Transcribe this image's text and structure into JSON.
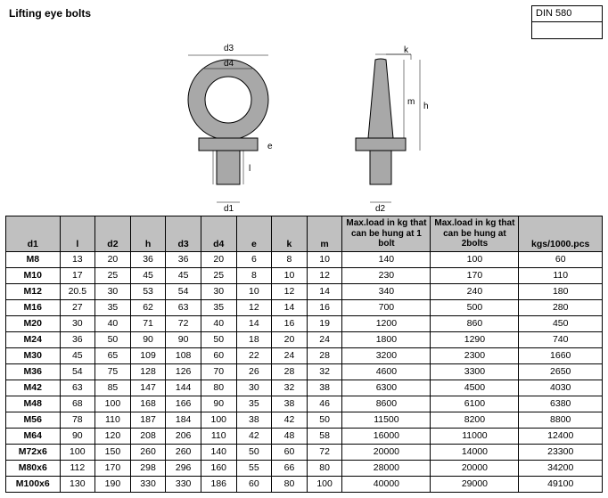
{
  "title": "Lifting eye bolts",
  "standard": "DIN 580",
  "diagram": {
    "labels": {
      "d1": "d1",
      "d2": "d2",
      "d3": "d3",
      "d4": "d4",
      "e": "e",
      "h": "h",
      "k": "k",
      "l": "l",
      "m": "m"
    },
    "part_fill": "#a8a8a8",
    "hole_fill": "#ffffff",
    "stroke": "#000000"
  },
  "columns": [
    "d1",
    "l",
    "d2",
    "h",
    "d3",
    "d4",
    "e",
    "k",
    "m",
    "Max.load in kg that can be hung at 1 bolt",
    "Max.load in kg that can be hung at 2bolts",
    "kgs/1000.pcs"
  ],
  "rows": [
    {
      "d1": "M8",
      "l": "13",
      "d2": "20",
      "h": "36",
      "d3": "36",
      "d4": "20",
      "e": "6",
      "k": "8",
      "m": "10",
      "b1": "140",
      "b2": "100",
      "kgs": "60"
    },
    {
      "d1": "M10",
      "l": "17",
      "d2": "25",
      "h": "45",
      "d3": "45",
      "d4": "25",
      "e": "8",
      "k": "10",
      "m": "12",
      "b1": "230",
      "b2": "170",
      "kgs": "110"
    },
    {
      "d1": "M12",
      "l": "20.5",
      "d2": "30",
      "h": "53",
      "d3": "54",
      "d4": "30",
      "e": "10",
      "k": "12",
      "m": "14",
      "b1": "340",
      "b2": "240",
      "kgs": "180"
    },
    {
      "d1": "M16",
      "l": "27",
      "d2": "35",
      "h": "62",
      "d3": "63",
      "d4": "35",
      "e": "12",
      "k": "14",
      "m": "16",
      "b1": "700",
      "b2": "500",
      "kgs": "280"
    },
    {
      "d1": "M20",
      "l": "30",
      "d2": "40",
      "h": "71",
      "d3": "72",
      "d4": "40",
      "e": "14",
      "k": "16",
      "m": "19",
      "b1": "1200",
      "b2": "860",
      "kgs": "450"
    },
    {
      "d1": "M24",
      "l": "36",
      "d2": "50",
      "h": "90",
      "d3": "90",
      "d4": "50",
      "e": "18",
      "k": "20",
      "m": "24",
      "b1": "1800",
      "b2": "1290",
      "kgs": "740"
    },
    {
      "d1": "M30",
      "l": "45",
      "d2": "65",
      "h": "109",
      "d3": "108",
      "d4": "60",
      "e": "22",
      "k": "24",
      "m": "28",
      "b1": "3200",
      "b2": "2300",
      "kgs": "1660"
    },
    {
      "d1": "M36",
      "l": "54",
      "d2": "75",
      "h": "128",
      "d3": "126",
      "d4": "70",
      "e": "26",
      "k": "28",
      "m": "32",
      "b1": "4600",
      "b2": "3300",
      "kgs": "2650"
    },
    {
      "d1": "M42",
      "l": "63",
      "d2": "85",
      "h": "147",
      "d3": "144",
      "d4": "80",
      "e": "30",
      "k": "32",
      "m": "38",
      "b1": "6300",
      "b2": "4500",
      "kgs": "4030"
    },
    {
      "d1": "M48",
      "l": "68",
      "d2": "100",
      "h": "168",
      "d3": "166",
      "d4": "90",
      "e": "35",
      "k": "38",
      "m": "46",
      "b1": "8600",
      "b2": "6100",
      "kgs": "6380"
    },
    {
      "d1": "M56",
      "l": "78",
      "d2": "110",
      "h": "187",
      "d3": "184",
      "d4": "100",
      "e": "38",
      "k": "42",
      "m": "50",
      "b1": "11500",
      "b2": "8200",
      "kgs": "8800"
    },
    {
      "d1": "M64",
      "l": "90",
      "d2": "120",
      "h": "208",
      "d3": "206",
      "d4": "110",
      "e": "42",
      "k": "48",
      "m": "58",
      "b1": "16000",
      "b2": "11000",
      "kgs": "12400"
    },
    {
      "d1": "M72x6",
      "l": "100",
      "d2": "150",
      "h": "260",
      "d3": "260",
      "d4": "140",
      "e": "50",
      "k": "60",
      "m": "72",
      "b1": "20000",
      "b2": "14000",
      "kgs": "23300"
    },
    {
      "d1": "M80x6",
      "l": "112",
      "d2": "170",
      "h": "298",
      "d3": "296",
      "d4": "160",
      "e": "55",
      "k": "66",
      "m": "80",
      "b1": "28000",
      "b2": "20000",
      "kgs": "34200"
    },
    {
      "d1": "M100x6",
      "l": "130",
      "d2": "190",
      "h": "330",
      "d3": "330",
      "d4": "186",
      "e": "60",
      "k": "80",
      "m": "100",
      "b1": "40000",
      "b2": "29000",
      "kgs": "49100"
    }
  ]
}
